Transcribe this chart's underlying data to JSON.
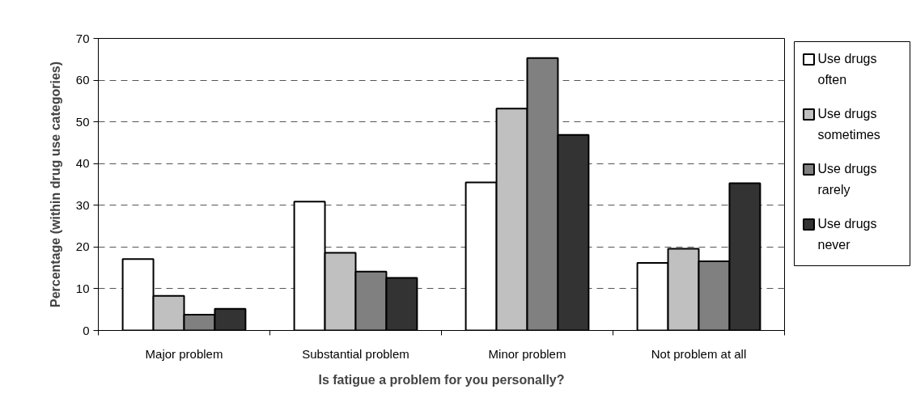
{
  "chart_data": {
    "type": "bar",
    "xlabel": "Is fatigue a problem for you personally?",
    "ylabel": "Percentage (within drug use categories)",
    "categories": [
      "Major problem",
      "Substantial problem",
      "Minor problem",
      "Not problem at all"
    ],
    "series": [
      {
        "name": "Use drugs often",
        "color": "#ffffff",
        "values": [
          17.1,
          30.9,
          35.5,
          16.2
        ]
      },
      {
        "name": "Use drugs sometimes",
        "color": "#c0c0c0",
        "values": [
          8.3,
          18.6,
          53.2,
          19.6
        ]
      },
      {
        "name": "Use drugs rarely",
        "color": "#808080",
        "values": [
          3.8,
          14.1,
          65.3,
          16.6
        ]
      },
      {
        "name": "Use drugs never",
        "color": "#333333",
        "values": [
          5.2,
          12.6,
          46.9,
          35.3
        ]
      }
    ],
    "ylim": [
      0,
      70
    ],
    "yticks": [
      0,
      10,
      20,
      30,
      40,
      50,
      60,
      70
    ],
    "grid": "y",
    "legend": "right"
  }
}
